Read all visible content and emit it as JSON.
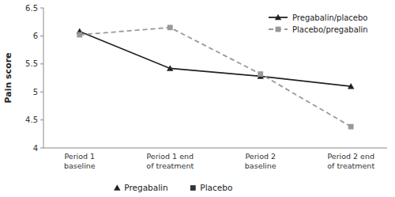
{
  "chart_data": {
    "type": "line",
    "categories": [
      "Period 1\nbaseline",
      "Period 1 end\nof treatment",
      "Period 2\nbaseline",
      "Period 2 end\nof treatment"
    ],
    "series": [
      {
        "name": "Pregabalin/placebo",
        "color": "#222222",
        "marker": "triangle",
        "line_style": "solid",
        "values": [
          6.08,
          5.42,
          5.28,
          5.1
        ]
      },
      {
        "name": "Placebo/pregabalin",
        "color": "#999999",
        "marker": "square",
        "line_style": "dashed",
        "values": [
          6.02,
          6.15,
          5.32,
          4.38
        ]
      }
    ],
    "y_label": "Pain score",
    "ylim": [
      4,
      6.5
    ],
    "yticks": [
      4,
      4.5,
      5,
      5.5,
      6,
      6.5
    ],
    "grid": false,
    "legend": "upper right",
    "annotations": [
      {
        "text": "Pregabalin",
        "marker": "triangle",
        "color": "#222222"
      },
      {
        "text": "Placebo",
        "marker": "square",
        "color": "#333333"
      }
    ]
  }
}
